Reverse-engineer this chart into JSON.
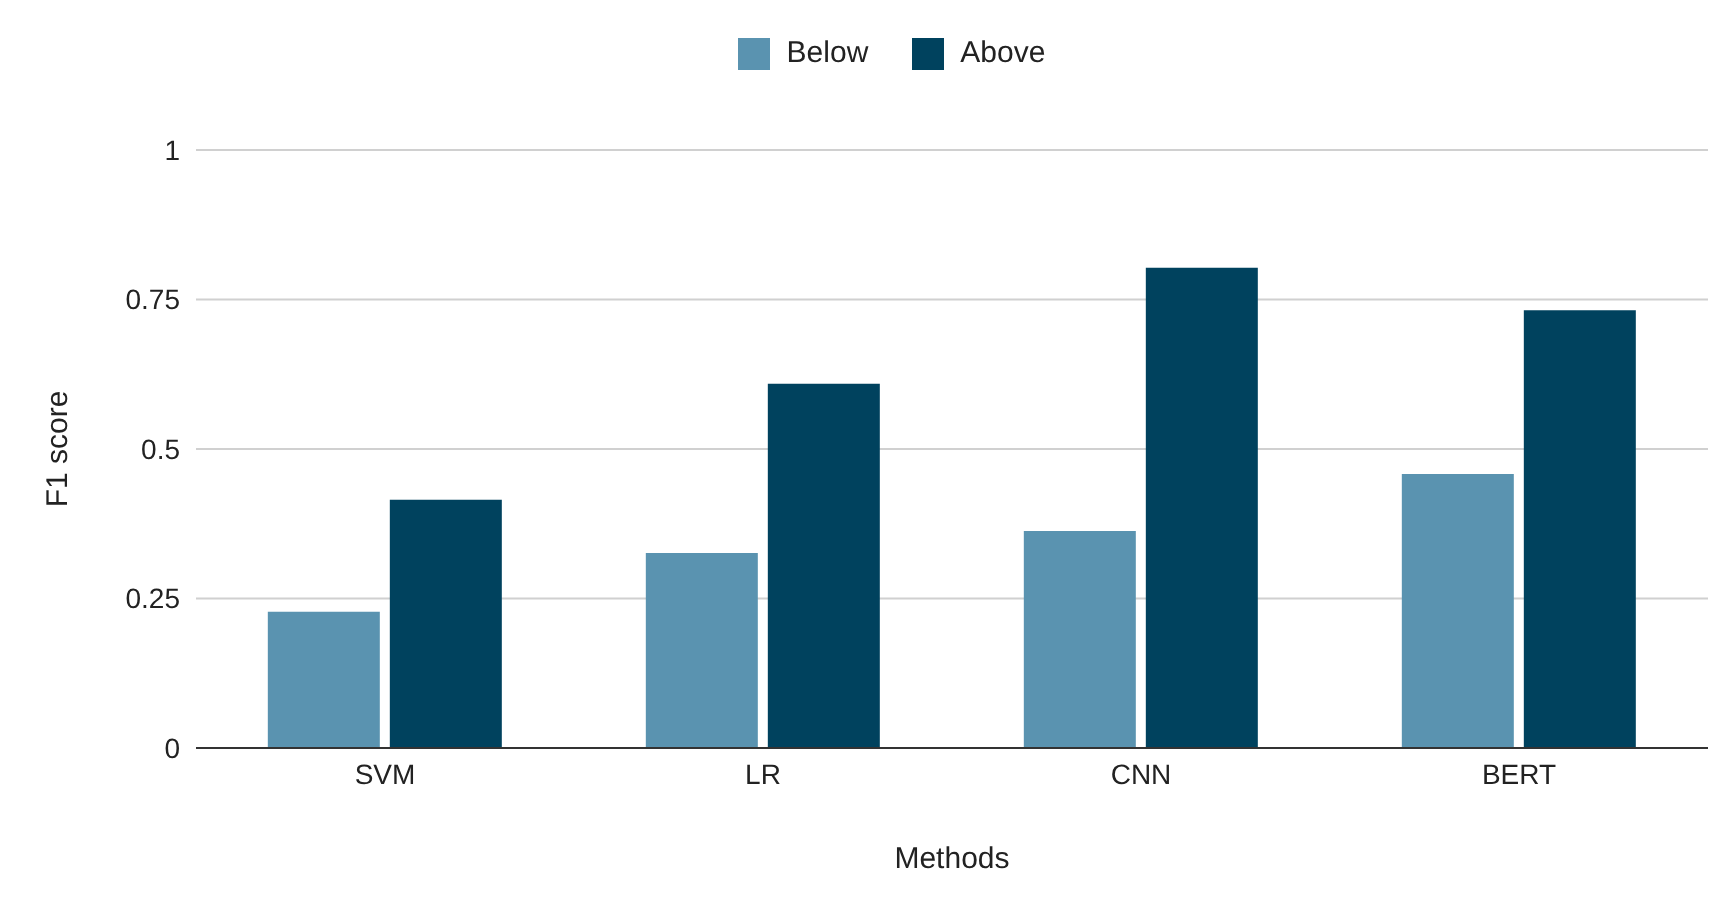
{
  "chart_data": {
    "type": "bar",
    "xlabel": "Methods",
    "ylabel": "F1 score",
    "categories": [
      "SVM",
      "LR",
      "CNN",
      "BERT"
    ],
    "series": [
      {
        "name": "Below",
        "color": "#5a93b0",
        "values": [
          0.228,
          0.326,
          0.363,
          0.458
        ]
      },
      {
        "name": "Above",
        "color": "#00425e",
        "values": [
          0.415,
          0.609,
          0.803,
          0.732
        ]
      }
    ],
    "ylim": [
      0,
      1
    ],
    "yticks": [
      0,
      0.25,
      0.5,
      0.75,
      1
    ],
    "grid": "y",
    "legend": "top"
  }
}
